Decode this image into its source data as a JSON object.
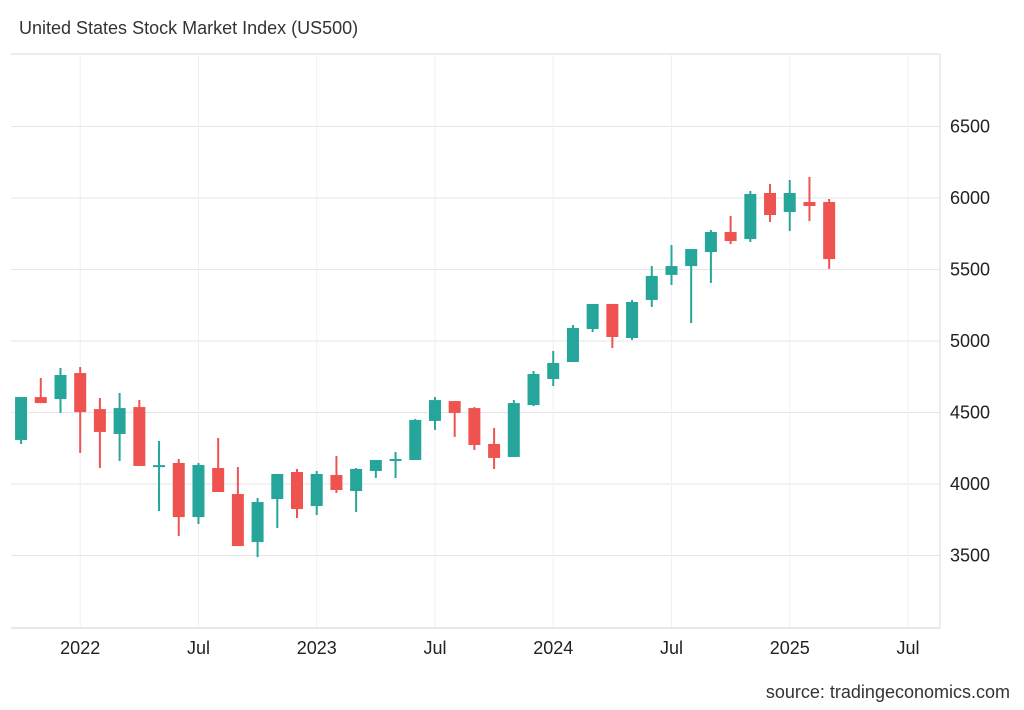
{
  "title": "United States Stock Market Index (US500)",
  "source": "source: tradingeconomics.com",
  "colors": {
    "up": "#26a69a",
    "down": "#ef5350",
    "grid": "#e6e6e6",
    "text": "#222222"
  },
  "chart_data": {
    "type": "candlestick",
    "title": "United States Stock Market Index (US500)",
    "xlabel": "",
    "ylabel": "",
    "frequency": "monthly",
    "ylim": [
      3000,
      7000
    ],
    "yticks": [
      3500,
      4000,
      4500,
      5000,
      5500,
      6000,
      6500
    ],
    "ytick_labels": [
      "3500",
      "4000",
      "4500",
      "5000",
      "5500",
      "6000",
      "6500"
    ],
    "y_axis_side": "right",
    "xlim": [
      "2021-09",
      "2025-10"
    ],
    "xticks": [
      "2022-01",
      "2022-07",
      "2023-01",
      "2023-07",
      "2024-01",
      "2024-07",
      "2025-01",
      "2025-07"
    ],
    "xtick_labels": [
      "2022",
      "Jul",
      "2023",
      "Jul",
      "2024",
      "Jul",
      "2025",
      "Jul"
    ],
    "grid": true,
    "legend": "none",
    "candles": [
      {
        "date": "2021-10",
        "open": 4308,
        "high": 4608,
        "low": 4280,
        "close": 4608
      },
      {
        "date": "2021-11",
        "open": 4608,
        "high": 4741,
        "low": 4566,
        "close": 4566
      },
      {
        "date": "2021-12",
        "open": 4594,
        "high": 4811,
        "low": 4497,
        "close": 4762
      },
      {
        "date": "2022-01",
        "open": 4776,
        "high": 4818,
        "low": 4217,
        "close": 4503
      },
      {
        "date": "2022-02",
        "open": 4524,
        "high": 4601,
        "low": 4112,
        "close": 4364
      },
      {
        "date": "2022-03",
        "open": 4350,
        "high": 4636,
        "low": 4161,
        "close": 4531
      },
      {
        "date": "2022-04",
        "open": 4538,
        "high": 4587,
        "low": 4126,
        "close": 4126
      },
      {
        "date": "2022-05",
        "open": 4130,
        "high": 4301,
        "low": 3811,
        "close": 4132
      },
      {
        "date": "2022-06",
        "open": 4147,
        "high": 4175,
        "low": 3636,
        "close": 3769
      },
      {
        "date": "2022-07",
        "open": 3769,
        "high": 4147,
        "low": 3720,
        "close": 4133
      },
      {
        "date": "2022-08",
        "open": 4112,
        "high": 4322,
        "low": 3944,
        "close": 3944
      },
      {
        "date": "2022-09",
        "open": 3930,
        "high": 4119,
        "low": 3566,
        "close": 3566
      },
      {
        "date": "2022-10",
        "open": 3594,
        "high": 3902,
        "low": 3489,
        "close": 3874
      },
      {
        "date": "2022-11",
        "open": 3895,
        "high": 4070,
        "low": 3692,
        "close": 4070
      },
      {
        "date": "2022-12",
        "open": 4084,
        "high": 4105,
        "low": 3762,
        "close": 3825
      },
      {
        "date": "2023-01",
        "open": 3846,
        "high": 4091,
        "low": 3783,
        "close": 4070
      },
      {
        "date": "2023-02",
        "open": 4063,
        "high": 4196,
        "low": 3937,
        "close": 3958
      },
      {
        "date": "2023-03",
        "open": 3951,
        "high": 4112,
        "low": 3804,
        "close": 4105
      },
      {
        "date": "2023-04",
        "open": 4091,
        "high": 4168,
        "low": 4042,
        "close": 4168
      },
      {
        "date": "2023-05",
        "open": 4161,
        "high": 4224,
        "low": 4042,
        "close": 4175
      },
      {
        "date": "2023-06",
        "open": 4168,
        "high": 4455,
        "low": 4168,
        "close": 4448
      },
      {
        "date": "2023-07",
        "open": 4441,
        "high": 4608,
        "low": 4378,
        "close": 4587
      },
      {
        "date": "2023-08",
        "open": 4580,
        "high": 4580,
        "low": 4329,
        "close": 4497
      },
      {
        "date": "2023-09",
        "open": 4531,
        "high": 4538,
        "low": 4238,
        "close": 4273
      },
      {
        "date": "2023-10",
        "open": 4280,
        "high": 4392,
        "low": 4105,
        "close": 4182
      },
      {
        "date": "2023-11",
        "open": 4189,
        "high": 4587,
        "low": 4189,
        "close": 4566
      },
      {
        "date": "2023-12",
        "open": 4552,
        "high": 4790,
        "low": 4545,
        "close": 4769
      },
      {
        "date": "2024-01",
        "open": 4734,
        "high": 4930,
        "low": 4685,
        "close": 4846
      },
      {
        "date": "2024-02",
        "open": 4853,
        "high": 5112,
        "low": 4853,
        "close": 5091
      },
      {
        "date": "2024-03",
        "open": 5084,
        "high": 5259,
        "low": 5063,
        "close": 5259
      },
      {
        "date": "2024-04",
        "open": 5259,
        "high": 5259,
        "low": 4951,
        "close": 5028
      },
      {
        "date": "2024-05",
        "open": 5021,
        "high": 5287,
        "low": 5007,
        "close": 5273
      },
      {
        "date": "2024-06",
        "open": 5287,
        "high": 5524,
        "low": 5238,
        "close": 5455
      },
      {
        "date": "2024-07",
        "open": 5462,
        "high": 5671,
        "low": 5392,
        "close": 5524
      },
      {
        "date": "2024-08",
        "open": 5524,
        "high": 5643,
        "low": 5126,
        "close": 5643
      },
      {
        "date": "2024-09",
        "open": 5622,
        "high": 5776,
        "low": 5406,
        "close": 5762
      },
      {
        "date": "2024-10",
        "open": 5762,
        "high": 5874,
        "low": 5678,
        "close": 5699
      },
      {
        "date": "2024-11",
        "open": 5713,
        "high": 6049,
        "low": 5692,
        "close": 6028
      },
      {
        "date": "2024-12",
        "open": 6035,
        "high": 6098,
        "low": 5832,
        "close": 5881
      },
      {
        "date": "2025-01",
        "open": 5902,
        "high": 6126,
        "low": 5769,
        "close": 6035
      },
      {
        "date": "2025-02",
        "open": 5972,
        "high": 6147,
        "low": 5839,
        "close": 5944
      },
      {
        "date": "2025-03",
        "open": 5972,
        "high": 5993,
        "low": 5504,
        "close": 5573
      }
    ]
  }
}
